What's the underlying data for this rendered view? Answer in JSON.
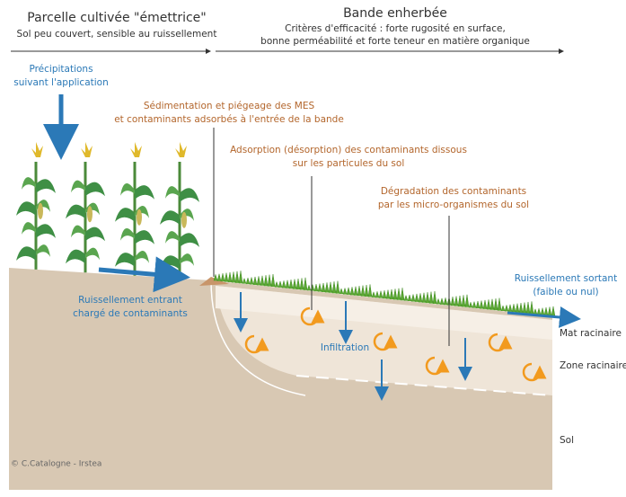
{
  "header": {
    "left": {
      "title": "Parcelle cultivée \"émettrice\"",
      "subtitle": "Sol peu couvert, sensible au ruissellement"
    },
    "right": {
      "title": "Bande enherbée",
      "subtitle_lines": [
        "Critères d'efficacité : forte rugosité en surface,",
        "bonne perméabilité et forte teneur en matière organique"
      ]
    }
  },
  "labels": {
    "precipitation": [
      "Précipitations",
      "suivant l'application"
    ],
    "sedimentation": [
      "Sédimentation et piégeage des MES",
      "et contaminants adsorbés à l'entrée de la bande"
    ],
    "adsorption": [
      "Adsorption (désorption) des contaminants dissous",
      "sur les particules du sol"
    ],
    "degradation": [
      "Dégradation des contaminants",
      "par les micro-organismes du sol"
    ],
    "runoff_out": [
      "Ruissellement sortant",
      "(faible ou nul)"
    ],
    "runoff_in": [
      "Ruissellement entrant",
      "chargé de contaminants"
    ],
    "infiltration": "Infiltration"
  },
  "layers": [
    "Mat racinaire",
    "Zone racinaire",
    "Sol"
  ],
  "credit": "© C.Catalogne - Irstea"
}
